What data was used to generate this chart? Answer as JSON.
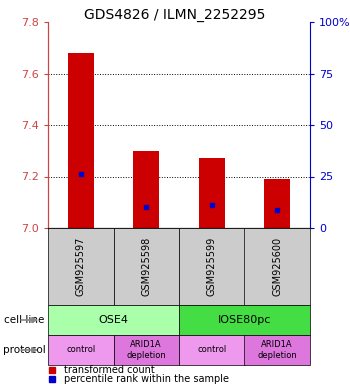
{
  "title": "GDS4826 / ILMN_2252295",
  "samples": [
    "GSM925597",
    "GSM925598",
    "GSM925599",
    "GSM925600"
  ],
  "transformed_counts": [
    7.68,
    7.3,
    7.27,
    7.19
  ],
  "percentile_values": [
    7.21,
    7.08,
    7.09,
    7.07
  ],
  "ylim": [
    7.0,
    7.8
  ],
  "yticks_left": [
    7.0,
    7.2,
    7.4,
    7.6,
    7.8
  ],
  "yticks_right": [
    0,
    25,
    50,
    75,
    100
  ],
  "bar_color": "#cc0000",
  "blue_color": "#0000cc",
  "bar_bottom": 7.0,
  "cell_line_groups": [
    {
      "label": "OSE4",
      "start": 0,
      "end": 2,
      "color": "#aaffaa"
    },
    {
      "label": "IOSE80pc",
      "start": 2,
      "end": 4,
      "color": "#44dd44"
    }
  ],
  "protocols": [
    "control",
    "ARID1A\ndepletion",
    "control",
    "ARID1A\ndepletion"
  ],
  "protocol_colors": [
    "#ee99ee",
    "#dd77dd",
    "#ee99ee",
    "#dd77dd"
  ],
  "gsm_box_color": "#cccccc",
  "left_label_color": "#cc4444",
  "right_label_color": "#0000cc",
  "legend_red_label": "transformed count",
  "legend_blue_label": "percentile rank within the sample",
  "title_fontsize": 10,
  "tick_fontsize": 8
}
